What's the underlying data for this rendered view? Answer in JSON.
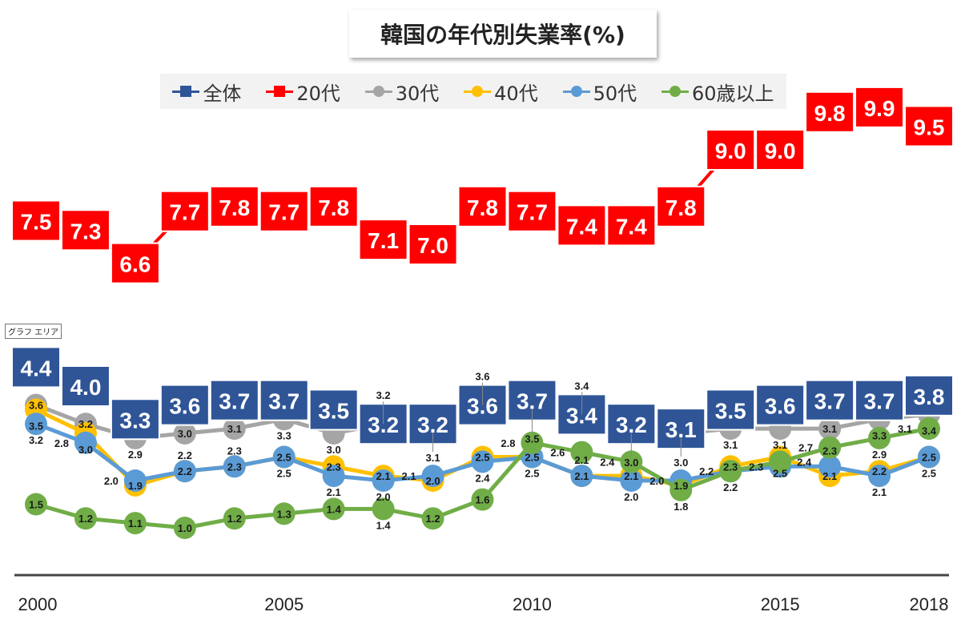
{
  "chart_data": {
    "type": "line",
    "title": "韓国の年代別失業率(%)",
    "xlabel": "",
    "ylabel": "",
    "x": [
      2000,
      2001,
      2002,
      2003,
      2004,
      2005,
      2006,
      2007,
      2008,
      2009,
      2010,
      2011,
      2012,
      2013,
      2014,
      2015,
      2016,
      2017,
      2018
    ],
    "x_tick_labels": [
      "2000",
      "2005",
      "2010",
      "2015",
      "2018"
    ],
    "x_tick_values": [
      2000,
      2005,
      2010,
      2015,
      2018
    ],
    "ylim": [
      0,
      10.5
    ],
    "grid": false,
    "legend_position": "top",
    "series": [
      {
        "name": "全体",
        "color": "#2f5597",
        "marker": "square",
        "values": [
          4.4,
          4.0,
          3.3,
          3.6,
          3.7,
          3.7,
          3.5,
          3.2,
          3.2,
          3.6,
          3.7,
          3.4,
          3.2,
          3.1,
          3.5,
          3.6,
          3.7,
          3.7,
          3.8
        ]
      },
      {
        "name": "20代",
        "color": "#ff0000",
        "marker": "square",
        "values": [
          7.5,
          7.3,
          6.6,
          7.7,
          7.8,
          7.7,
          7.8,
          7.1,
          7.0,
          7.8,
          7.7,
          7.4,
          7.4,
          7.8,
          9.0,
          9.0,
          9.8,
          9.9,
          9.5
        ]
      },
      {
        "name": "30代",
        "color": "#a5a5a5",
        "marker": "circle",
        "values": [
          3.6,
          3.2,
          2.9,
          3.0,
          3.1,
          3.3,
          3.0,
          3.2,
          3.1,
          3.6,
          3.5,
          3.4,
          3.0,
          3.0,
          3.1,
          3.1,
          3.1,
          3.3,
          3.4
        ]
      },
      {
        "name": "40代",
        "color": "#ffc000",
        "marker": "circle",
        "values": [
          3.5,
          3.0,
          1.9,
          2.2,
          2.3,
          2.5,
          2.3,
          2.1,
          2.0,
          2.5,
          2.5,
          2.1,
          2.1,
          1.9,
          2.3,
          2.5,
          2.1,
          2.2,
          2.5
        ]
      },
      {
        "name": "50代",
        "color": "#5b9bd5",
        "marker": "circle",
        "values": [
          3.2,
          2.8,
          2.0,
          2.2,
          2.3,
          2.5,
          2.1,
          2.0,
          2.1,
          2.4,
          2.5,
          2.1,
          2.0,
          2.0,
          2.2,
          2.3,
          2.3,
          2.1,
          2.5
        ]
      },
      {
        "name": "60歳以上",
        "color": "#70ad47",
        "marker": "circle",
        "values": [
          1.5,
          1.2,
          1.1,
          1.0,
          1.2,
          1.3,
          1.4,
          1.4,
          1.2,
          1.6,
          2.8,
          2.6,
          2.4,
          1.8,
          2.2,
          2.4,
          2.7,
          2.9,
          3.1
        ]
      }
    ]
  },
  "tooltip": "グラフ エリア"
}
